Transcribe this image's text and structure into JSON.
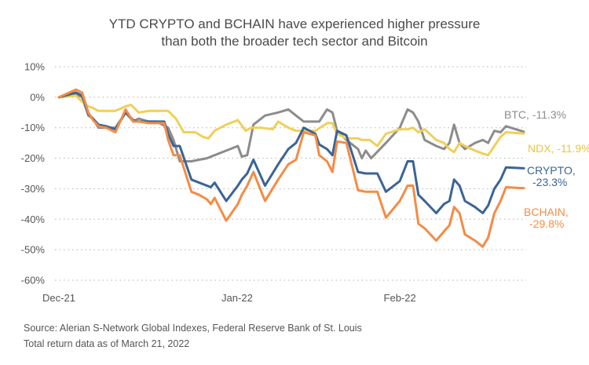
{
  "chart_data": {
    "type": "line",
    "title": "YTD CRYPTO and BCHAIN have experienced higher pressure than both the broader tech sector and Bitcoin",
    "title_lines": [
      "YTD CRYPTO and BCHAIN have experienced higher pressure",
      "than both the broader tech sector and Bitcoin"
    ],
    "xlabel": "",
    "ylabel": "",
    "ylim": [
      -60,
      10
    ],
    "yticks": [
      10,
      0,
      -10,
      -20,
      -30,
      -40,
      -50,
      -60
    ],
    "ytick_labels": [
      "10%",
      "0%",
      "-10%",
      "-20%",
      "-30%",
      "-40%",
      "-50%",
      "-60%"
    ],
    "xlim": [
      0,
      60
    ],
    "xticks": [
      0,
      23,
      44
    ],
    "xtick_labels": [
      "Dec-21",
      "Jan-22",
      "Feb-22"
    ],
    "grid": true,
    "legend": "end-of-line labels",
    "series": [
      {
        "name": "BTC",
        "end_label": [
          "BTC, -11.3%"
        ],
        "color": "#8c8c8c",
        "x": [
          0,
          2.2,
          3,
          3.8,
          4.4,
          5.1,
          6.1,
          7.3,
          8.6,
          9.6,
          10.3,
          11.6,
          12.6,
          14.1,
          14.8,
          15.6,
          17.1,
          18.1,
          19.1,
          20.1,
          21.6,
          23.1,
          23.6,
          24.3,
          25.1,
          26.6,
          28.3,
          29.6,
          30.6,
          31.6,
          33.1,
          33.6,
          34.6,
          35.3,
          35.9,
          37.1,
          38.6,
          39.1,
          39.6,
          40.3,
          42.2,
          44,
          45,
          45.7,
          46.4,
          47.2,
          48.7,
          49.7,
          50.4,
          51,
          51.7,
          52.4,
          53.7,
          54.7,
          55.4,
          56.2,
          57,
          57.7,
          60
        ],
        "values": [
          0,
          1,
          0,
          -6,
          -7,
          -10,
          -10,
          -10,
          -5,
          -8,
          -7,
          -8,
          -8,
          -10,
          -14,
          -21,
          -21,
          -20.5,
          -20,
          -19,
          -17.5,
          -16,
          -19.5,
          -19,
          -9,
          -6,
          -5,
          -4,
          -6,
          -8,
          -8,
          -8,
          -4,
          -5,
          -11,
          -14,
          -17,
          -20,
          -17.5,
          -20,
          -15,
          -10,
          -4,
          -5,
          -8,
          -14,
          -16,
          -17,
          -15,
          -9,
          -15,
          -17,
          -15,
          -14,
          -15,
          -11,
          -11.5,
          -9.5,
          -11.3
        ]
      },
      {
        "name": "NDX",
        "end_label": [
          "NDX, -11.9%"
        ],
        "color": "#f0cf5a",
        "x": [
          0,
          2.2,
          3,
          3.8,
          4.4,
          5.1,
          6.1,
          7.3,
          8.6,
          9.3,
          10.3,
          11.6,
          13.1,
          14.1,
          15.1,
          16.1,
          17.6,
          18.6,
          19.3,
          20.1,
          21.6,
          23.1,
          24.1,
          24.8,
          26.1,
          27.6,
          28.3,
          29.6,
          30.6,
          31.6,
          33.1,
          34.6,
          35.3,
          35.9,
          37.1,
          38.6,
          39.1,
          40.1,
          41.1,
          42.2,
          44,
          45,
          45.7,
          46.4,
          47.2,
          48.7,
          49.7,
          50.4,
          51,
          51.7,
          52.4,
          53.7,
          54.7,
          55.4,
          56.2,
          57,
          57.7,
          60
        ],
        "values": [
          0,
          0.5,
          -1.5,
          -3,
          -3.5,
          -4.5,
          -4.5,
          -4.5,
          -3,
          -2.5,
          -5,
          -4.5,
          -4.5,
          -4.5,
          -7,
          -11.5,
          -11.5,
          -13,
          -13.5,
          -11,
          -9,
          -7.5,
          -11,
          -10,
          -10,
          -10.5,
          -8,
          -10,
          -11,
          -11,
          -11,
          -8.5,
          -8.5,
          -12,
          -13.5,
          -13.5,
          -14,
          -14,
          -16,
          -12,
          -10.5,
          -10.5,
          -10,
          -11.5,
          -10.5,
          -14,
          -15,
          -17,
          -18,
          -15,
          -16,
          -17.5,
          -18.5,
          -19,
          -16,
          -13,
          -11.5,
          -11.9
        ]
      },
      {
        "name": "CRYPTO",
        "end_label": [
          "CRYPTO,",
          "-23.3%"
        ],
        "color": "#3a6496",
        "x": [
          0,
          2.2,
          3,
          3.8,
          4.4,
          5.1,
          6.1,
          7.3,
          8.6,
          9.6,
          10.3,
          11.6,
          12.6,
          13.6,
          14.1,
          14.8,
          15.6,
          17.1,
          18.1,
          19.1,
          19.6,
          20.1,
          21.6,
          23.1,
          23.6,
          24.3,
          25.1,
          26.6,
          28.3,
          29.6,
          30.6,
          31.6,
          33.1,
          33.6,
          34.6,
          35.3,
          35.9,
          37.1,
          38.6,
          39.6,
          40.3,
          41.1,
          42.2,
          44,
          45,
          45.7,
          46.4,
          47.2,
          48.7,
          49.7,
          50.4,
          51,
          51.7,
          52.4,
          53.7,
          54.7,
          55.4,
          56.2,
          57,
          57.7,
          60
        ],
        "values": [
          0,
          1.5,
          0.5,
          -5.5,
          -7,
          -9,
          -9.5,
          -10.5,
          -5,
          -7.5,
          -8,
          -8,
          -8,
          -8,
          -12,
          -16,
          -16,
          -27,
          -28,
          -29,
          -29.5,
          -28,
          -34,
          -29,
          -27,
          -25,
          -20.5,
          -29,
          -22,
          -17,
          -15,
          -10,
          -12,
          -15.5,
          -17,
          -19,
          -11,
          -12.5,
          -24.5,
          -25,
          -25,
          -25,
          -31,
          -27.5,
          -21,
          -21,
          -32,
          -34,
          -38,
          -35,
          -34,
          -27,
          -29,
          -34,
          -36,
          -38,
          -35.5,
          -30,
          -27,
          -23,
          -23.3
        ]
      },
      {
        "name": "BCHAIN",
        "end_label": [
          "BCHAIN,",
          "-29.8%"
        ],
        "color": "#f58b45",
        "x": [
          0,
          2.2,
          3,
          3.8,
          4.4,
          5.1,
          6.1,
          7.3,
          8.6,
          9.6,
          10.3,
          11.6,
          12.6,
          13.6,
          14.1,
          14.8,
          15.6,
          17.1,
          18.1,
          19.1,
          19.6,
          20.1,
          21.6,
          23.1,
          23.6,
          24.3,
          25.1,
          26.6,
          28.3,
          29.6,
          30.6,
          31.6,
          33.1,
          33.6,
          34.6,
          35.3,
          35.9,
          37.1,
          38.6,
          39.6,
          40.3,
          41.1,
          42.2,
          44,
          45,
          45.7,
          46.4,
          47.2,
          48.7,
          49.7,
          50.4,
          51,
          51.7,
          52.4,
          53.7,
          54.7,
          55.4,
          56.2,
          57,
          57.7,
          60
        ],
        "values": [
          0,
          2.5,
          1.5,
          -5,
          -7.5,
          -9.5,
          -10,
          -11.5,
          -4,
          -8,
          -8,
          -8.5,
          -8.5,
          -8.5,
          -14,
          -19,
          -19,
          -31,
          -32,
          -33.5,
          -35,
          -33,
          -40.5,
          -35,
          -32,
          -29,
          -24.5,
          -34,
          -27,
          -22,
          -20.5,
          -11.5,
          -12.5,
          -19,
          -21,
          -24.5,
          -14.5,
          -15,
          -30.5,
          -31,
          -31,
          -31,
          -39.5,
          -34,
          -29,
          -29,
          -41.5,
          -43,
          -47,
          -44,
          -42,
          -36,
          -38,
          -45,
          -47,
          -49,
          -46,
          -38,
          -34,
          -29.5,
          -29.8
        ]
      }
    ]
  },
  "footer": {
    "source": "Source: Alerian S-Network Global Indexes, Federal Reserve Bank of St. Louis",
    "note": "Total return data as of March 21, 2022"
  }
}
